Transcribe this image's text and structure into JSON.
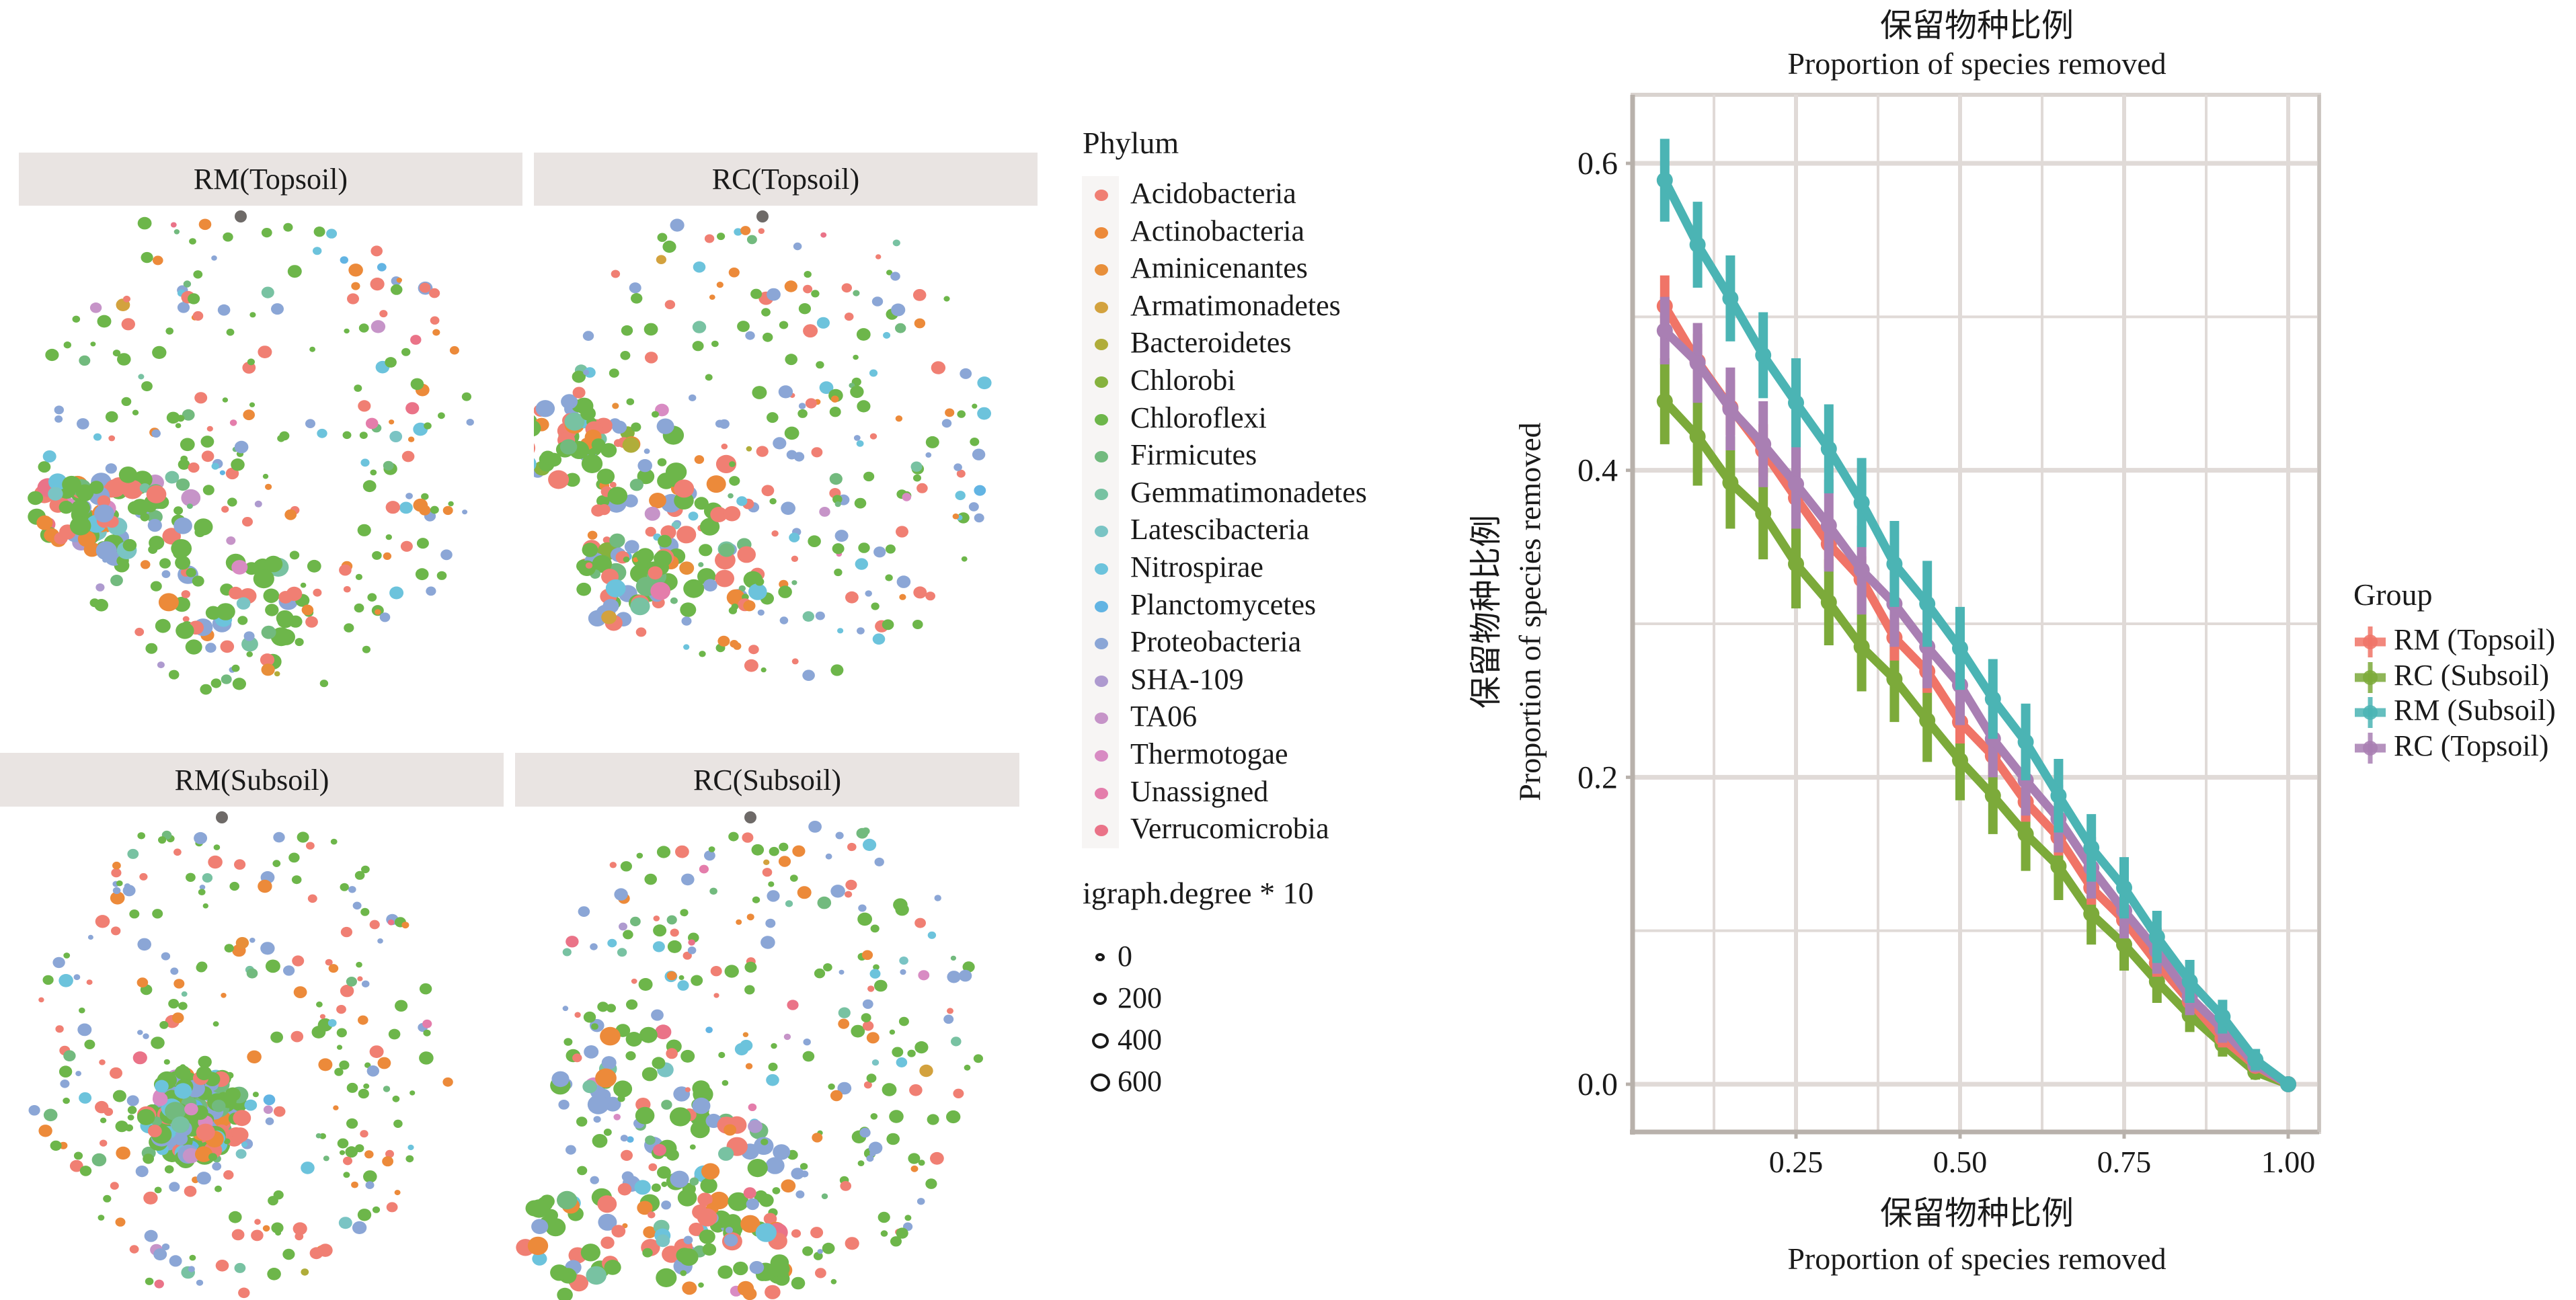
{
  "networks": {
    "panels": [
      {
        "label": "RM(Topsoil)"
      },
      {
        "label": "RC(Topsoil)"
      },
      {
        "label": "RM(Subsoil)"
      },
      {
        "label": "RC(Subsoil)"
      }
    ],
    "phylum_legend": {
      "title": "Phylum",
      "items": [
        {
          "name": "Acidobacteria",
          "color": "#F07F73"
        },
        {
          "name": "Actinobacteria",
          "color": "#EC8A3A"
        },
        {
          "name": "Aminicenantes",
          "color": "#E88F3A"
        },
        {
          "name": "Armatimonadetes",
          "color": "#D3A23E"
        },
        {
          "name": "Bacteroidetes",
          "color": "#B0AD3A"
        },
        {
          "name": "Chlorobi",
          "color": "#86B23E"
        },
        {
          "name": "Chloroflexi",
          "color": "#6DB64A"
        },
        {
          "name": "Firmicutes",
          "color": "#72BA7E"
        },
        {
          "name": "Gemmatimonadetes",
          "color": "#78C2A2"
        },
        {
          "name": "Latescibacteria",
          "color": "#7AC4C4"
        },
        {
          "name": "Nitrospirae",
          "color": "#6CC3DC"
        },
        {
          "name": "Planctomycetes",
          "color": "#62B4E3"
        },
        {
          "name": "Proteobacteria",
          "color": "#8BA6D6"
        },
        {
          "name": "SHA-109",
          "color": "#AE9ACF"
        },
        {
          "name": "TA06",
          "color": "#C694C8"
        },
        {
          "name": "Thermotogae",
          "color": "#D88BC3"
        },
        {
          "name": "Unassigned",
          "color": "#E47DAB"
        },
        {
          "name": "Verrucomicrobia",
          "color": "#EA7388"
        }
      ]
    },
    "size_legend": {
      "title": "igraph.degree * 10",
      "items": [
        {
          "label": "0"
        },
        {
          "label": "200"
        },
        {
          "label": "400"
        },
        {
          "label": "600"
        }
      ]
    }
  },
  "chart_data": {
    "type": "line",
    "title": "保留物种比例",
    "subtitle": "Proportion of species removed",
    "xlabel": [
      "保留物种比例",
      "Proportion of species removed"
    ],
    "ylabel": [
      "保留物种比例",
      "Proportion of species removed"
    ],
    "xlim": [
      0.0,
      1.05
    ],
    "ylim": [
      -0.08,
      0.645
    ],
    "x_ticks": [
      0.25,
      0.5,
      0.75,
      1.0
    ],
    "x_tick_labels": [
      "0.25",
      "0.50",
      "0.75",
      "1.00"
    ],
    "y_ticks": [
      0.0,
      0.2,
      0.4,
      0.6
    ],
    "y_tick_labels": [
      "0.0",
      "0.2",
      "0.4",
      "0.6"
    ],
    "grid": true,
    "legend": {
      "title": "Group",
      "placement": "right"
    },
    "x": [
      0.05,
      0.1,
      0.15,
      0.2,
      0.25,
      0.3,
      0.35,
      0.4,
      0.45,
      0.5,
      0.55,
      0.6,
      0.65,
      0.7,
      0.75,
      0.8,
      0.85,
      0.9,
      0.95,
      1.0
    ],
    "series": [
      {
        "name": "RM (Topsoil)",
        "color": "#F07467",
        "values": [
          0.507,
          0.471,
          0.441,
          0.413,
          0.382,
          0.352,
          0.329,
          0.291,
          0.269,
          0.236,
          0.214,
          0.184,
          0.161,
          0.128,
          0.107,
          0.079,
          0.054,
          0.03,
          0.012,
          0.0
        ],
        "errors": [
          0.02,
          0.018,
          0.018,
          0.017,
          0.016,
          0.016,
          0.015,
          0.015,
          0.014,
          0.014,
          0.013,
          0.013,
          0.012,
          0.011,
          0.01,
          0.009,
          0.008,
          0.006,
          0.004,
          0.0
        ]
      },
      {
        "name": "RC (Subsoil)",
        "color": "#7CAA3A",
        "values": [
          0.445,
          0.422,
          0.392,
          0.372,
          0.339,
          0.314,
          0.285,
          0.264,
          0.237,
          0.211,
          0.188,
          0.163,
          0.142,
          0.111,
          0.091,
          0.067,
          0.045,
          0.026,
          0.008,
          0.0
        ],
        "errors": [
          0.028,
          0.032,
          0.03,
          0.03,
          0.029,
          0.028,
          0.029,
          0.028,
          0.027,
          0.026,
          0.025,
          0.024,
          0.022,
          0.02,
          0.017,
          0.014,
          0.011,
          0.008,
          0.005,
          0.0
        ]
      },
      {
        "name": "RM (Subsoil)",
        "color": "#4BB4B4",
        "values": [
          0.589,
          0.547,
          0.512,
          0.475,
          0.444,
          0.414,
          0.379,
          0.339,
          0.313,
          0.284,
          0.251,
          0.223,
          0.188,
          0.154,
          0.128,
          0.096,
          0.067,
          0.044,
          0.016,
          0.0
        ],
        "errors": [
          0.027,
          0.028,
          0.028,
          0.028,
          0.029,
          0.029,
          0.029,
          0.028,
          0.028,
          0.027,
          0.026,
          0.025,
          0.024,
          0.022,
          0.02,
          0.017,
          0.014,
          0.011,
          0.007,
          0.0
        ]
      },
      {
        "name": "RC (Topsoil)",
        "color": "#A97FB3",
        "values": [
          0.491,
          0.47,
          0.44,
          0.417,
          0.391,
          0.364,
          0.335,
          0.313,
          0.285,
          0.26,
          0.225,
          0.198,
          0.173,
          0.141,
          0.113,
          0.087,
          0.057,
          0.036,
          0.013,
          0.0
        ],
        "errors": [
          0.022,
          0.026,
          0.027,
          0.028,
          0.029,
          0.03,
          0.029,
          0.028,
          0.027,
          0.026,
          0.025,
          0.023,
          0.022,
          0.02,
          0.018,
          0.015,
          0.012,
          0.009,
          0.005,
          0.0
        ]
      }
    ]
  }
}
